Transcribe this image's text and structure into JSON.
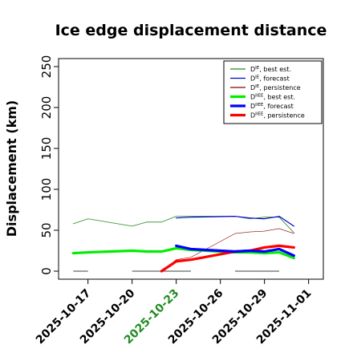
{
  "chart_data": {
    "type": "line",
    "title": "Ice edge displacement distance",
    "ylabel": "Displacement (km)",
    "xlabel": "",
    "ylim": [
      0,
      260
    ],
    "yticks": [
      0,
      50,
      100,
      150,
      200,
      250
    ],
    "xlim": [
      "2025-10-15",
      "2025-11-02"
    ],
    "x_tick_labels": [
      {
        "label": "2025-10-17",
        "date": "2025-10-17",
        "color": "#000000"
      },
      {
        "label": "2025-10-20",
        "date": "2025-10-20",
        "color": "#000000"
      },
      {
        "label": "2025-10-23",
        "date": "2025-10-23",
        "color": "#228B22"
      },
      {
        "label": "2025-10-26",
        "date": "2025-10-26",
        "color": "#000000"
      },
      {
        "label": "2025-10-29",
        "date": "2025-10-29",
        "color": "#000000"
      },
      {
        "label": "2025-11-01",
        "date": "2025-11-01",
        "color": "#000000"
      }
    ],
    "legend_position": "top-right",
    "grid": false,
    "series": [
      {
        "name": "D^IE, best est.",
        "legend_base": "D",
        "legend_sup": "IE",
        "legend_rest": ", best est.",
        "color": "#228B22",
        "width": 0.8,
        "points": [
          [
            "2025-10-16",
            58
          ],
          [
            "2025-10-17",
            64
          ],
          [
            "2025-10-20",
            55
          ],
          [
            "2025-10-21",
            60
          ],
          [
            "2025-10-22",
            60
          ],
          [
            "2025-10-23",
            67
          ],
          [
            "2025-10-24",
            67
          ],
          [
            "2025-10-27",
            67
          ],
          [
            "2025-10-28",
            64
          ],
          [
            "2025-10-29",
            66
          ],
          [
            "2025-10-30",
            66
          ],
          [
            "2025-10-31",
            47
          ]
        ]
      },
      {
        "name": "D^IE, forecast",
        "legend_base": "D",
        "legend_sup": "IE",
        "legend_rest": ", forecast",
        "color": "#0000CD",
        "width": 1.2,
        "points": [
          [
            "2025-10-23",
            65
          ],
          [
            "2025-10-24",
            66
          ],
          [
            "2025-10-27",
            67
          ],
          [
            "2025-10-28",
            65
          ],
          [
            "2025-10-29",
            64
          ],
          [
            "2025-10-30",
            67
          ],
          [
            "2025-10-31",
            55
          ]
        ]
      },
      {
        "name": "D^IE, persistence",
        "legend_base": "D",
        "legend_sup": "IE",
        "legend_rest": ", persistence",
        "color": "#8B0000",
        "width": 0.6,
        "points": [
          [
            "2025-10-22",
            0
          ],
          [
            "2025-10-23",
            14
          ],
          [
            "2025-10-24",
            17
          ],
          [
            "2025-10-27",
            46
          ],
          [
            "2025-10-28",
            48
          ],
          [
            "2025-10-29",
            49
          ],
          [
            "2025-10-30",
            52
          ],
          [
            "2025-10-31",
            46
          ]
        ]
      },
      {
        "name": "D^IIEE, best est.",
        "legend_base": "D",
        "legend_sup": "IIEE",
        "legend_rest": ", best est.",
        "color": "#00EE00",
        "width": 3.2,
        "points": [
          [
            "2025-10-16",
            22
          ],
          [
            "2025-10-17",
            23
          ],
          [
            "2025-10-20",
            25
          ],
          [
            "2025-10-21",
            24
          ],
          [
            "2025-10-22",
            24
          ],
          [
            "2025-10-23",
            28
          ],
          [
            "2025-10-24",
            26
          ],
          [
            "2025-10-27",
            23
          ],
          [
            "2025-10-28",
            23
          ],
          [
            "2025-10-29",
            22
          ],
          [
            "2025-10-30",
            23
          ],
          [
            "2025-10-31",
            16
          ]
        ]
      },
      {
        "name": "D^IIEE, forecast",
        "legend_base": "D",
        "legend_sup": "IIEE",
        "legend_rest": ", forecast",
        "color": "#0000FF",
        "width": 3.2,
        "points": [
          [
            "2025-10-23",
            31
          ],
          [
            "2025-10-24",
            27
          ],
          [
            "2025-10-27",
            24
          ],
          [
            "2025-10-28",
            25
          ],
          [
            "2025-10-29",
            24
          ],
          [
            "2025-10-30",
            27
          ],
          [
            "2025-10-31",
            19
          ]
        ]
      },
      {
        "name": "D^IIEE, persistence",
        "legend_base": "D",
        "legend_sup": "IIEE",
        "legend_rest": ", persistence",
        "color": "#FF0000",
        "width": 3.2,
        "points": [
          [
            "2025-10-22",
            0
          ],
          [
            "2025-10-23",
            12
          ],
          [
            "2025-10-24",
            14
          ],
          [
            "2025-10-27",
            24
          ],
          [
            "2025-10-28",
            25
          ],
          [
            "2025-10-29",
            29
          ],
          [
            "2025-10-30",
            31
          ],
          [
            "2025-10-31",
            29
          ]
        ]
      }
    ],
    "zero_markers": [
      {
        "from": "2025-10-16",
        "to": "2025-10-17"
      },
      {
        "from": "2025-10-20",
        "to": "2025-10-24"
      },
      {
        "from": "2025-10-27",
        "to": "2025-10-30"
      }
    ],
    "zero_marker_color": "#808080"
  }
}
